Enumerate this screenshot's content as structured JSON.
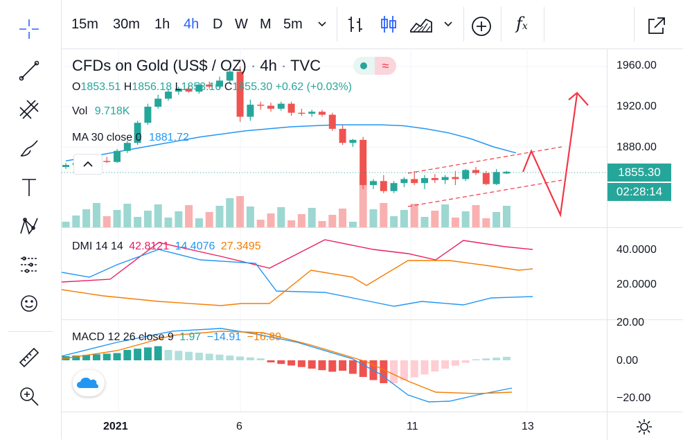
{
  "toolbar": {
    "timeframes": [
      "15m",
      "30m",
      "1h",
      "4h",
      "D",
      "W",
      "M",
      "5m"
    ],
    "active_timeframe": "4h",
    "fx_label": "f",
    "fx_sub": "x"
  },
  "legend": {
    "symbol": "CFDs on Gold (US$ / OZ)",
    "interval": "4h",
    "source": "TVC",
    "approx_glyph": "≈",
    "ohlc": {
      "o_label": "O",
      "o": "1853.51",
      "h_label": "H",
      "h": "1856.18",
      "l_label": "L",
      "l": "1853.10",
      "c_label": "C",
      "c": "1855.30",
      "change": "+0.62 (+0.03%)"
    },
    "vol_label": "Vol",
    "vol_value": "9.718K",
    "ma_label": "MA 30 close 0",
    "ma_value": "1881.72",
    "collapse_glyph": "^"
  },
  "dmi": {
    "label": "DMI 14 14",
    "v1": "42.8121",
    "v2": "14.4076",
    "v3": "27.3495"
  },
  "macd": {
    "label": "MACD 12 26 close 9",
    "v1": "1.97",
    "v2": "−14.91",
    "v3": "−16.89"
  },
  "price_scale": {
    "main": [
      "1960.00",
      "1920.00",
      "1880.00"
    ],
    "current_price": "1855.30",
    "countdown": "02:28:14",
    "dmi": [
      "40.0000",
      "20.0000"
    ],
    "macd": [
      "20.00",
      "0.00",
      "−20.00"
    ]
  },
  "time_axis": [
    "2021",
    "6",
    "11",
    "13"
  ],
  "colors": {
    "up": "#26a69a",
    "down": "#ef5350",
    "ma": "#2196f3",
    "accent": "#2962ff",
    "drawing": "#f23645"
  },
  "chart_data": {
    "type": "candlestick",
    "ylim": [
      1830,
      1975
    ],
    "candles": [
      {
        "o": 1860,
        "h": 1864,
        "l": 1858,
        "c": 1862
      },
      {
        "o": 1862,
        "h": 1866,
        "l": 1860,
        "c": 1864
      },
      {
        "o": 1864,
        "h": 1867,
        "l": 1862,
        "c": 1865
      },
      {
        "o": 1865,
        "h": 1867,
        "l": 1863,
        "c": 1866
      },
      {
        "o": 1866,
        "h": 1870,
        "l": 1864,
        "c": 1865
      },
      {
        "o": 1865,
        "h": 1878,
        "l": 1864,
        "c": 1876
      },
      {
        "o": 1876,
        "h": 1886,
        "l": 1874,
        "c": 1884
      },
      {
        "o": 1884,
        "h": 1906,
        "l": 1882,
        "c": 1904
      },
      {
        "o": 1904,
        "h": 1923,
        "l": 1902,
        "c": 1920
      },
      {
        "o": 1920,
        "h": 1932,
        "l": 1918,
        "c": 1928
      },
      {
        "o": 1928,
        "h": 1938,
        "l": 1926,
        "c": 1935
      },
      {
        "o": 1935,
        "h": 1940,
        "l": 1932,
        "c": 1938
      },
      {
        "o": 1938,
        "h": 1942,
        "l": 1934,
        "c": 1935
      },
      {
        "o": 1935,
        "h": 1944,
        "l": 1933,
        "c": 1942
      },
      {
        "o": 1942,
        "h": 1945,
        "l": 1938,
        "c": 1940
      },
      {
        "o": 1940,
        "h": 1950,
        "l": 1938,
        "c": 1946
      },
      {
        "o": 1946,
        "h": 1960,
        "l": 1944,
        "c": 1955
      },
      {
        "o": 1955,
        "h": 1960,
        "l": 1905,
        "c": 1910
      },
      {
        "o": 1910,
        "h": 1927,
        "l": 1906,
        "c": 1922
      },
      {
        "o": 1922,
        "h": 1925,
        "l": 1917,
        "c": 1921
      },
      {
        "o": 1921,
        "h": 1924,
        "l": 1915,
        "c": 1918
      },
      {
        "o": 1918,
        "h": 1925,
        "l": 1916,
        "c": 1923
      },
      {
        "o": 1923,
        "h": 1925,
        "l": 1911,
        "c": 1914
      },
      {
        "o": 1914,
        "h": 1918,
        "l": 1911,
        "c": 1913
      },
      {
        "o": 1913,
        "h": 1917,
        "l": 1910,
        "c": 1915
      },
      {
        "o": 1915,
        "h": 1917,
        "l": 1910,
        "c": 1912
      },
      {
        "o": 1912,
        "h": 1914,
        "l": 1896,
        "c": 1898
      },
      {
        "o": 1898,
        "h": 1902,
        "l": 1882,
        "c": 1884
      },
      {
        "o": 1884,
        "h": 1888,
        "l": 1880,
        "c": 1887
      },
      {
        "o": 1887,
        "h": 1890,
        "l": 1838,
        "c": 1842
      },
      {
        "o": 1842,
        "h": 1848,
        "l": 1838,
        "c": 1846
      },
      {
        "o": 1846,
        "h": 1852,
        "l": 1834,
        "c": 1836
      },
      {
        "o": 1836,
        "h": 1846,
        "l": 1834,
        "c": 1844
      },
      {
        "o": 1844,
        "h": 1850,
        "l": 1840,
        "c": 1848
      },
      {
        "o": 1848,
        "h": 1856,
        "l": 1842,
        "c": 1844
      },
      {
        "o": 1844,
        "h": 1852,
        "l": 1838,
        "c": 1849
      },
      {
        "o": 1849,
        "h": 1853,
        "l": 1844,
        "c": 1847
      },
      {
        "o": 1847,
        "h": 1852,
        "l": 1843,
        "c": 1850
      },
      {
        "o": 1850,
        "h": 1856,
        "l": 1842,
        "c": 1848
      },
      {
        "o": 1848,
        "h": 1858,
        "l": 1846,
        "c": 1857
      },
      {
        "o": 1857,
        "h": 1860,
        "l": 1852,
        "c": 1854
      },
      {
        "o": 1854,
        "h": 1856,
        "l": 1842,
        "c": 1843
      },
      {
        "o": 1843,
        "h": 1858,
        "l": 1842,
        "c": 1855
      },
      {
        "o": 1853.51,
        "h": 1856.18,
        "l": 1853.1,
        "c": 1855.3
      }
    ],
    "ma": [
      1866,
      1870,
      1874,
      1878,
      1882,
      1886,
      1890,
      1893,
      1896,
      1898,
      1900,
      1901,
      1902,
      1902,
      1902,
      1901,
      1898,
      1894,
      1888,
      1880,
      1874
    ]
  }
}
